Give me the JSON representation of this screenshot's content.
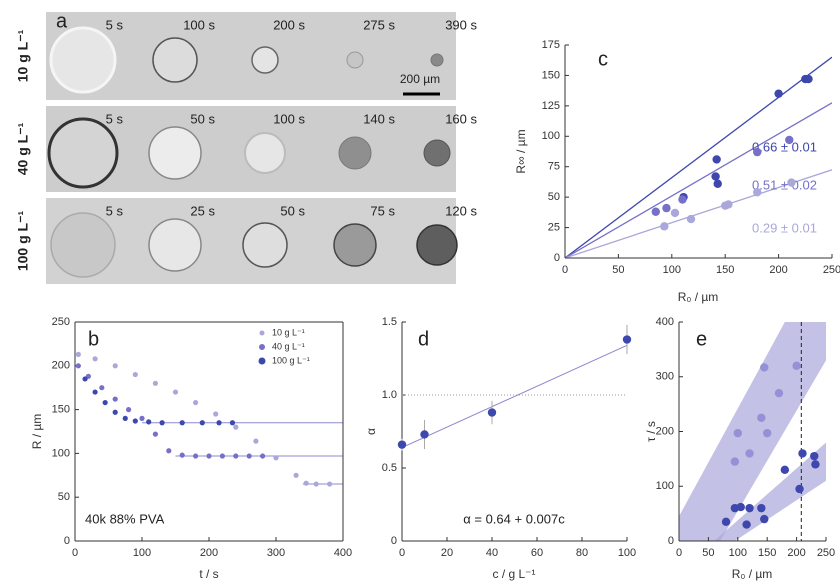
{
  "panel_a": {
    "label": "a",
    "scale_bar": "200 µm",
    "rows": [
      {
        "label": "10 g L⁻¹",
        "times": [
          "5 s",
          "100 s",
          "200 s",
          "275 s",
          "390 s"
        ]
      },
      {
        "label": "40 g L⁻¹",
        "times": [
          "5 s",
          "50 s",
          "100 s",
          "140 s",
          "160 s"
        ]
      },
      {
        "label": "100 g L⁻¹",
        "times": [
          "5 s",
          "25 s",
          "50 s",
          "75 s",
          "120 s"
        ]
      }
    ]
  },
  "chart_data": [
    {
      "type": "scatter",
      "label": "b",
      "xlabel": "t / s",
      "ylabel": "R / µm",
      "annotations": [
        "40k 88% PVA"
      ],
      "xlim": [
        0,
        400
      ],
      "xticks": [
        0,
        100,
        200,
        300,
        400
      ],
      "ylim": [
        0,
        250
      ],
      "yticks": [
        0,
        50,
        100,
        150,
        200,
        250
      ],
      "frame": true,
      "legend": "top-right",
      "series": [
        {
          "name": "10 g L⁻¹",
          "color": "#aaa7da",
          "x": [
            5,
            30,
            60,
            90,
            120,
            150,
            180,
            210,
            240,
            270,
            300,
            330,
            345,
            360,
            380
          ],
          "values": [
            213,
            208,
            200,
            190,
            180,
            170,
            158,
            145,
            130,
            114,
            95,
            75,
            66,
            65,
            65
          ]
        },
        {
          "name": "40 g L⁻¹",
          "color": "#7770c8",
          "x": [
            5,
            20,
            40,
            60,
            80,
            100,
            120,
            140,
            160,
            180,
            200,
            220,
            240,
            260,
            280
          ],
          "values": [
            200,
            188,
            175,
            162,
            150,
            140,
            122,
            103,
            98,
            97,
            97,
            97,
            97,
            97,
            97
          ]
        },
        {
          "name": "100 g L⁻¹",
          "color": "#3d47ad",
          "x": [
            15,
            30,
            45,
            60,
            75,
            90,
            110,
            130,
            160,
            190,
            215,
            235
          ],
          "values": [
            185,
            170,
            158,
            147,
            140,
            137,
            136,
            135,
            135,
            135,
            135,
            135
          ]
        },
        {
          "style": "line",
          "color": "#8c88cf",
          "x": [
            100,
            400
          ],
          "values": [
            135,
            135
          ]
        },
        {
          "style": "line",
          "color": "#8c88cf",
          "x": [
            150,
            400
          ],
          "values": [
            97,
            97
          ]
        },
        {
          "style": "line",
          "color": "#8c88cf",
          "x": [
            340,
            400
          ],
          "values": [
            65,
            65
          ]
        }
      ]
    },
    {
      "type": "scatter",
      "label": "c",
      "xlabel": "R₀ / µm",
      "ylabel": "R∞ / µm",
      "xlim": [
        0,
        250
      ],
      "xticks": [
        0,
        50,
        100,
        150,
        200,
        250
      ],
      "ylim": [
        0,
        175
      ],
      "yticks": [
        0,
        25,
        50,
        75,
        100,
        125,
        150,
        175
      ],
      "series": [
        {
          "color": "#3d47ad",
          "fit_slope": 0.66,
          "fit_label": "0.66 ± 0.01",
          "x": [
            111,
            142,
            141,
            143,
            200,
            225,
            228
          ],
          "values": [
            50,
            81,
            67,
            61,
            135,
            147,
            147
          ]
        },
        {
          "color": "#7770c8",
          "fit_slope": 0.51,
          "fit_label": "0.51 ± 0.02",
          "x": [
            85,
            95,
            110,
            180,
            210
          ],
          "values": [
            38,
            41,
            48,
            87,
            97
          ]
        },
        {
          "color": "#aaa7da",
          "fit_slope": 0.29,
          "fit_label": "0.29 ± 0.01",
          "x": [
            93,
            103,
            118,
            150,
            153,
            180,
            212
          ],
          "values": [
            26,
            37,
            32,
            43,
            44,
            54,
            62
          ]
        }
      ]
    },
    {
      "type": "scatter",
      "label": "d",
      "xlabel": "c / g L⁻¹",
      "ylabel": "α",
      "annotations": [
        "α = 0.64 + 0.007c"
      ],
      "xlim": [
        0,
        100
      ],
      "xticks": [
        0,
        20,
        40,
        60,
        80,
        100
      ],
      "ylim": [
        0,
        1.5
      ],
      "yticks": [
        0,
        {
          "value": 0.5,
          "label": "0.5"
        },
        {
          "value": 1,
          "label": "1.0"
        },
        {
          "value": 1.5,
          "label": "1.5"
        }
      ],
      "hline": 1,
      "fit": {
        "intercept": 0.64,
        "slope": 0.007
      },
      "series": [
        {
          "color": "#3d47ad",
          "x": [
            0,
            10,
            40,
            100
          ],
          "values": [
            0.66,
            0.73,
            0.88,
            1.38
          ],
          "errors": [
            0.04,
            0.1,
            0.08,
            0.1
          ]
        }
      ]
    },
    {
      "type": "scatter",
      "label": "e",
      "xlabel": "R₀ / µm",
      "ylabel": "τ / s",
      "xlim": [
        0,
        250
      ],
      "xticks": [
        0,
        50,
        100,
        150,
        200,
        250
      ],
      "ylim": [
        0,
        400
      ],
      "yticks": [
        0,
        100,
        200,
        300,
        400
      ],
      "vline": 208,
      "bands": [
        {
          "color": "#aaa7da",
          "x": [
            0,
            0,
            180,
            250,
            250,
            70
          ],
          "values": [
            0,
            45,
            400,
            400,
            330,
            0
          ]
        },
        {
          "color": "#aaa7da",
          "x": [
            60,
            250,
            250,
            95
          ],
          "values": [
            0,
            180,
            110,
            0
          ]
        }
      ],
      "series": [
        {
          "color": "#9591d6",
          "x": [
            95,
            100,
            120,
            140,
            145,
            150,
            170,
            200
          ],
          "values": [
            145,
            197,
            160,
            225,
            317,
            197,
            270,
            320
          ]
        },
        {
          "color": "#3d47ad",
          "x": [
            80,
            95,
            105,
            115,
            120,
            140,
            145,
            180,
            205,
            210,
            230,
            232
          ],
          "values": [
            35,
            60,
            62,
            30,
            60,
            60,
            40,
            130,
            95,
            160,
            155,
            140
          ]
        }
      ]
    }
  ]
}
